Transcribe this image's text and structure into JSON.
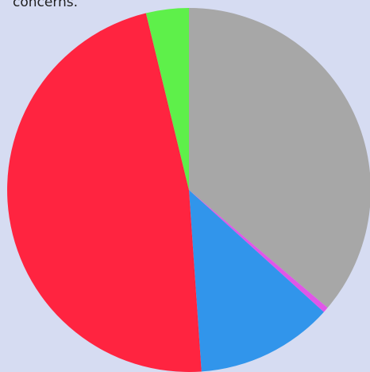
{
  "caption": "concerns.",
  "chart_data": {
    "type": "pie",
    "start_angle_deg": 0,
    "direction": "clockwise",
    "slices": [
      {
        "value": 36.2,
        "color": "#a7a7a7"
      },
      {
        "value": 0.5,
        "color": "#e056e8"
      },
      {
        "value": 12.2,
        "color": "#3195eb"
      },
      {
        "value": 47.3,
        "color": "#ff2440"
      },
      {
        "value": 3.8,
        "color": "#5ef04a"
      }
    ]
  }
}
